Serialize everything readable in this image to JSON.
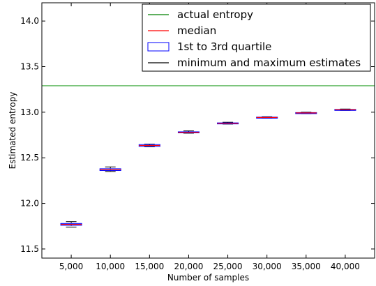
{
  "chart_data": {
    "type": "box",
    "xlabel": "Number of samples",
    "ylabel": "Estimated entropy",
    "ylim": [
      11.4,
      14.2
    ],
    "yticks": [
      11.5,
      12.0,
      12.5,
      13.0,
      13.5,
      14.0
    ],
    "ytick_labels": [
      "11.5",
      "12.0",
      "12.5",
      "13.0",
      "13.5",
      "14.0"
    ],
    "grid": false,
    "legend_position": "top-right",
    "actual_entropy": 13.29,
    "categories": [
      "5,000",
      "10,000",
      "15,000",
      "20,000",
      "25,000",
      "30,000",
      "35,000",
      "40,000"
    ],
    "boxes": [
      {
        "min": 11.74,
        "q1": 11.76,
        "median": 11.77,
        "q3": 11.78,
        "max": 11.8
      },
      {
        "min": 12.35,
        "q1": 12.36,
        "median": 12.37,
        "q3": 12.38,
        "max": 12.4
      },
      {
        "min": 12.62,
        "q1": 12.625,
        "median": 12.635,
        "q3": 12.645,
        "max": 12.65
      },
      {
        "min": 12.77,
        "q1": 12.775,
        "median": 12.78,
        "q3": 12.785,
        "max": 12.795
      },
      {
        "min": 12.87,
        "q1": 12.873,
        "median": 12.878,
        "q3": 12.883,
        "max": 12.89
      },
      {
        "min": 12.935,
        "q1": 12.938,
        "median": 12.942,
        "q3": 12.946,
        "max": 12.95
      },
      {
        "min": 12.985,
        "q1": 12.988,
        "median": 12.992,
        "q3": 12.996,
        "max": 13.0
      },
      {
        "min": 13.02,
        "q1": 13.023,
        "median": 13.027,
        "q3": 13.031,
        "max": 13.035
      }
    ],
    "legend": [
      {
        "label": "actual entropy",
        "kind": "line",
        "color": "#008000"
      },
      {
        "label": "median",
        "kind": "line",
        "color": "#ff0000"
      },
      {
        "label": "1st to 3rd quartile",
        "kind": "box",
        "color": "#0000ff"
      },
      {
        "label": "minimum and maximum estimates",
        "kind": "line",
        "color": "#000000"
      }
    ],
    "colors": {
      "actual": "#2ca02c",
      "median": "#ff0000",
      "box": "#0000ff",
      "whisker": "#000000"
    }
  }
}
